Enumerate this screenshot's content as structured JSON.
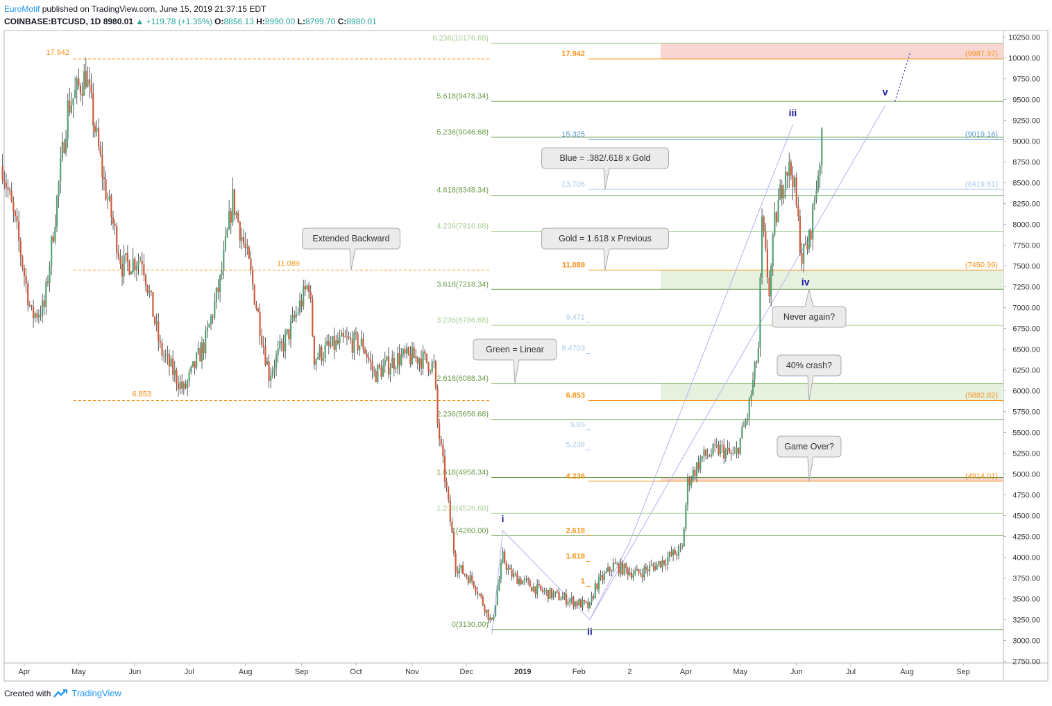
{
  "header": {
    "author": "EuroMotif",
    "published": " published on TradingView.com, June 15, 2019 21:37:15 EDT",
    "symbol": "COINBASE:BTCUSD, 1D",
    "last": "8980.01",
    "change": "▲ +119.78 (+1.35%)",
    "o_label": "O:",
    "o": "8856.13",
    "h_label": "H:",
    "h": "8990.00",
    "l_label": "L:",
    "l": "8799.70",
    "c_label": "C:",
    "c": "8980.01"
  },
  "footer": {
    "created": "Created with",
    "brand": "TradingView"
  },
  "colors": {
    "up": "#53a073",
    "down": "#cf5a3b",
    "green_fib": "#6a9c4a",
    "light_green_fib": "#a9cf95",
    "gold": "#f7931a",
    "blue": "#5c9bd1",
    "light_blue": "#a6c8ea",
    "wave": "#1a1a9e",
    "red_zone": "#f8d7d3",
    "green_zone": "#e6f1e0"
  },
  "chart_data": {
    "type": "candlestick",
    "title": "",
    "ylim": [
      2750,
      10250
    ],
    "y_ticks": [
      "10250.00",
      "10000.00",
      "9750.00",
      "9500.00",
      "9250.00",
      "9000.00",
      "8750.00",
      "8500.00",
      "8250.00",
      "8000.00",
      "7750.00",
      "7500.00",
      "7250.00",
      "7000.00",
      "6750.00",
      "6500.00",
      "6250.00",
      "6000.00",
      "5750.00",
      "5500.00",
      "5250.00",
      "5000.00",
      "4750.00",
      "4500.00",
      "4250.00",
      "4000.00",
      "3750.00",
      "3500.00",
      "3250.00",
      "3000.00",
      "2750.00"
    ],
    "x_ticks": [
      "Apr",
      "May",
      "Jun",
      "Jul",
      "Aug",
      "Sep",
      "Oct",
      "Nov",
      "Dec",
      "2019",
      "Feb",
      "2",
      "Apr",
      "May",
      "Jun",
      "Jul",
      "Aug",
      "Sep"
    ],
    "price_path": [
      [
        "2018-03-20",
        8700
      ],
      [
        "2018-03-28",
        7900
      ],
      [
        "2018-04-05",
        6900
      ],
      [
        "2018-04-12",
        7000
      ],
      [
        "2018-04-25",
        9400
      ],
      [
        "2018-05-05",
        9800
      ],
      [
        "2018-05-15",
        8500
      ],
      [
        "2018-05-25",
        7500
      ],
      [
        "2018-06-05",
        7600
      ],
      [
        "2018-06-15",
        6500
      ],
      [
        "2018-06-28",
        6000
      ],
      [
        "2018-07-10",
        6600
      ],
      [
        "2018-07-18",
        7300
      ],
      [
        "2018-07-25",
        8300
      ],
      [
        "2018-08-03",
        7500
      ],
      [
        "2018-08-14",
        6200
      ],
      [
        "2018-08-25",
        6700
      ],
      [
        "2018-09-05",
        7300
      ],
      [
        "2018-09-08",
        6400
      ],
      [
        "2018-09-15",
        6500
      ],
      [
        "2018-09-25",
        6600
      ],
      [
        "2018-10-05",
        6550
      ],
      [
        "2018-10-11",
        6200
      ],
      [
        "2018-10-25",
        6400
      ],
      [
        "2018-11-05",
        6400
      ],
      [
        "2018-11-13",
        6300
      ],
      [
        "2018-11-15",
        5600
      ],
      [
        "2018-11-20",
        4800
      ],
      [
        "2018-11-25",
        3900
      ],
      [
        "2018-12-05",
        3700
      ],
      [
        "2018-12-15",
        3200
      ],
      [
        "2018-12-21",
        4000
      ],
      [
        "2018-12-25",
        3800
      ],
      [
        "2019-01-10",
        3600
      ],
      [
        "2019-01-25",
        3500
      ],
      [
        "2019-02-07",
        3400
      ],
      [
        "2019-02-10",
        3650
      ],
      [
        "2019-02-20",
        3900
      ],
      [
        "2019-03-05",
        3800
      ],
      [
        "2019-03-15",
        3900
      ],
      [
        "2019-03-30",
        4100
      ],
      [
        "2019-04-02",
        4900
      ],
      [
        "2019-04-10",
        5200
      ],
      [
        "2019-04-20",
        5300
      ],
      [
        "2019-04-28",
        5200
      ],
      [
        "2019-05-05",
        5700
      ],
      [
        "2019-05-11",
        6500
      ],
      [
        "2019-05-13",
        8000
      ],
      [
        "2019-05-17",
        7200
      ],
      [
        "2019-05-20",
        8000
      ],
      [
        "2019-05-26",
        8700
      ],
      [
        "2019-05-30",
        8600
      ],
      [
        "2019-06-04",
        7600
      ],
      [
        "2019-06-08",
        7800
      ],
      [
        "2019-06-15",
        8980
      ]
    ],
    "fib_linear": [
      {
        "label": "6.236(10176.68)",
        "value": 10176.68
      },
      {
        "label": "5.618(9478.34)",
        "value": 9478.34
      },
      {
        "label": "5.236(9046.68)",
        "value": 9046.68
      },
      {
        "label": "4.618(8348.34)",
        "value": 8348.34
      },
      {
        "label": "4.236(7916.68)",
        "value": 7916.68
      },
      {
        "label": "3.618(7218.34)",
        "value": 7218.34
      },
      {
        "label": "3.236(6786.68)",
        "value": 6786.68
      },
      {
        "label": "2.618(6088.34)",
        "value": 6088.34
      },
      {
        "label": "2.236(5656.68)",
        "value": 5656.68
      },
      {
        "label": "1.618(4958.34)",
        "value": 4958.34
      },
      {
        "label": "1.236(4526.68)",
        "value": 4526.68
      },
      {
        "label": "1(4260.00)",
        "value": 4260.0
      },
      {
        "label": "0(3130.00)",
        "value": 3130.0
      }
    ],
    "gold_levels": [
      {
        "label": "17.942",
        "price_label": "(9987.97)",
        "value": 9987.97
      },
      {
        "label": "11.089",
        "price_label": "(7450.99)",
        "value": 7450.99
      },
      {
        "label": "6.853",
        "price_label": "(5882.82)",
        "value": 5882.82
      },
      {
        "label": "4.236",
        "price_label": "(4914.01)",
        "value": 4914.01
      },
      {
        "label": "2.618",
        "value": 4260.0
      },
      {
        "label": "1.618",
        "value": 3950.0
      },
      {
        "label": "1",
        "value": 3650.0
      }
    ],
    "blue_levels": [
      {
        "label": "15.325",
        "price_label": "(9019.16)",
        "value": 9019.16
      },
      {
        "label": "13.706",
        "price_label": "(8419.81)",
        "value": 8419.81
      },
      {
        "label": "9.471",
        "value": 6820.0
      },
      {
        "label": "8.4703",
        "value": 6450.0
      },
      {
        "label": "5.85",
        "value": 5530.0
      },
      {
        "label": "5.236",
        "value": 5290.0
      }
    ],
    "backward_levels": [
      {
        "label": "17.942",
        "value": 9987.97
      },
      {
        "label": "11.089",
        "value": 7450.99
      },
      {
        "label": "6.853",
        "value": 5882.82
      }
    ],
    "waves": [
      {
        "label": "i",
        "date": "2018-12-21",
        "value": 4320
      },
      {
        "label": "ii",
        "date": "2019-02-07",
        "value": 3250
      },
      {
        "label": "iii",
        "date": "2019-05-30",
        "value": 9200
      },
      {
        "label": "iv",
        "date": "2019-06-06",
        "value": 7450
      },
      {
        "label": "v",
        "date": "2019-07-20",
        "value": 9450
      }
    ],
    "callouts": [
      {
        "text": "Extended Backward"
      },
      {
        "text": "Blue = .382/.618 x Gold"
      },
      {
        "text": "Gold = 1.618 x Previous"
      },
      {
        "text": "Green = Linear"
      },
      {
        "text": "Never again?"
      },
      {
        "text": "40% crash?"
      },
      {
        "text": "Game Over?"
      }
    ],
    "zones": [
      {
        "color": "red_zone",
        "from": 9987.97,
        "to": 10176.68
      },
      {
        "color": "green_zone",
        "from": 7218.34,
        "to": 7450.99
      },
      {
        "color": "green_zone",
        "from": 5882.82,
        "to": 6088.34
      },
      {
        "color": "red_zone",
        "from": 4914.01,
        "to": 4958.34
      }
    ]
  }
}
